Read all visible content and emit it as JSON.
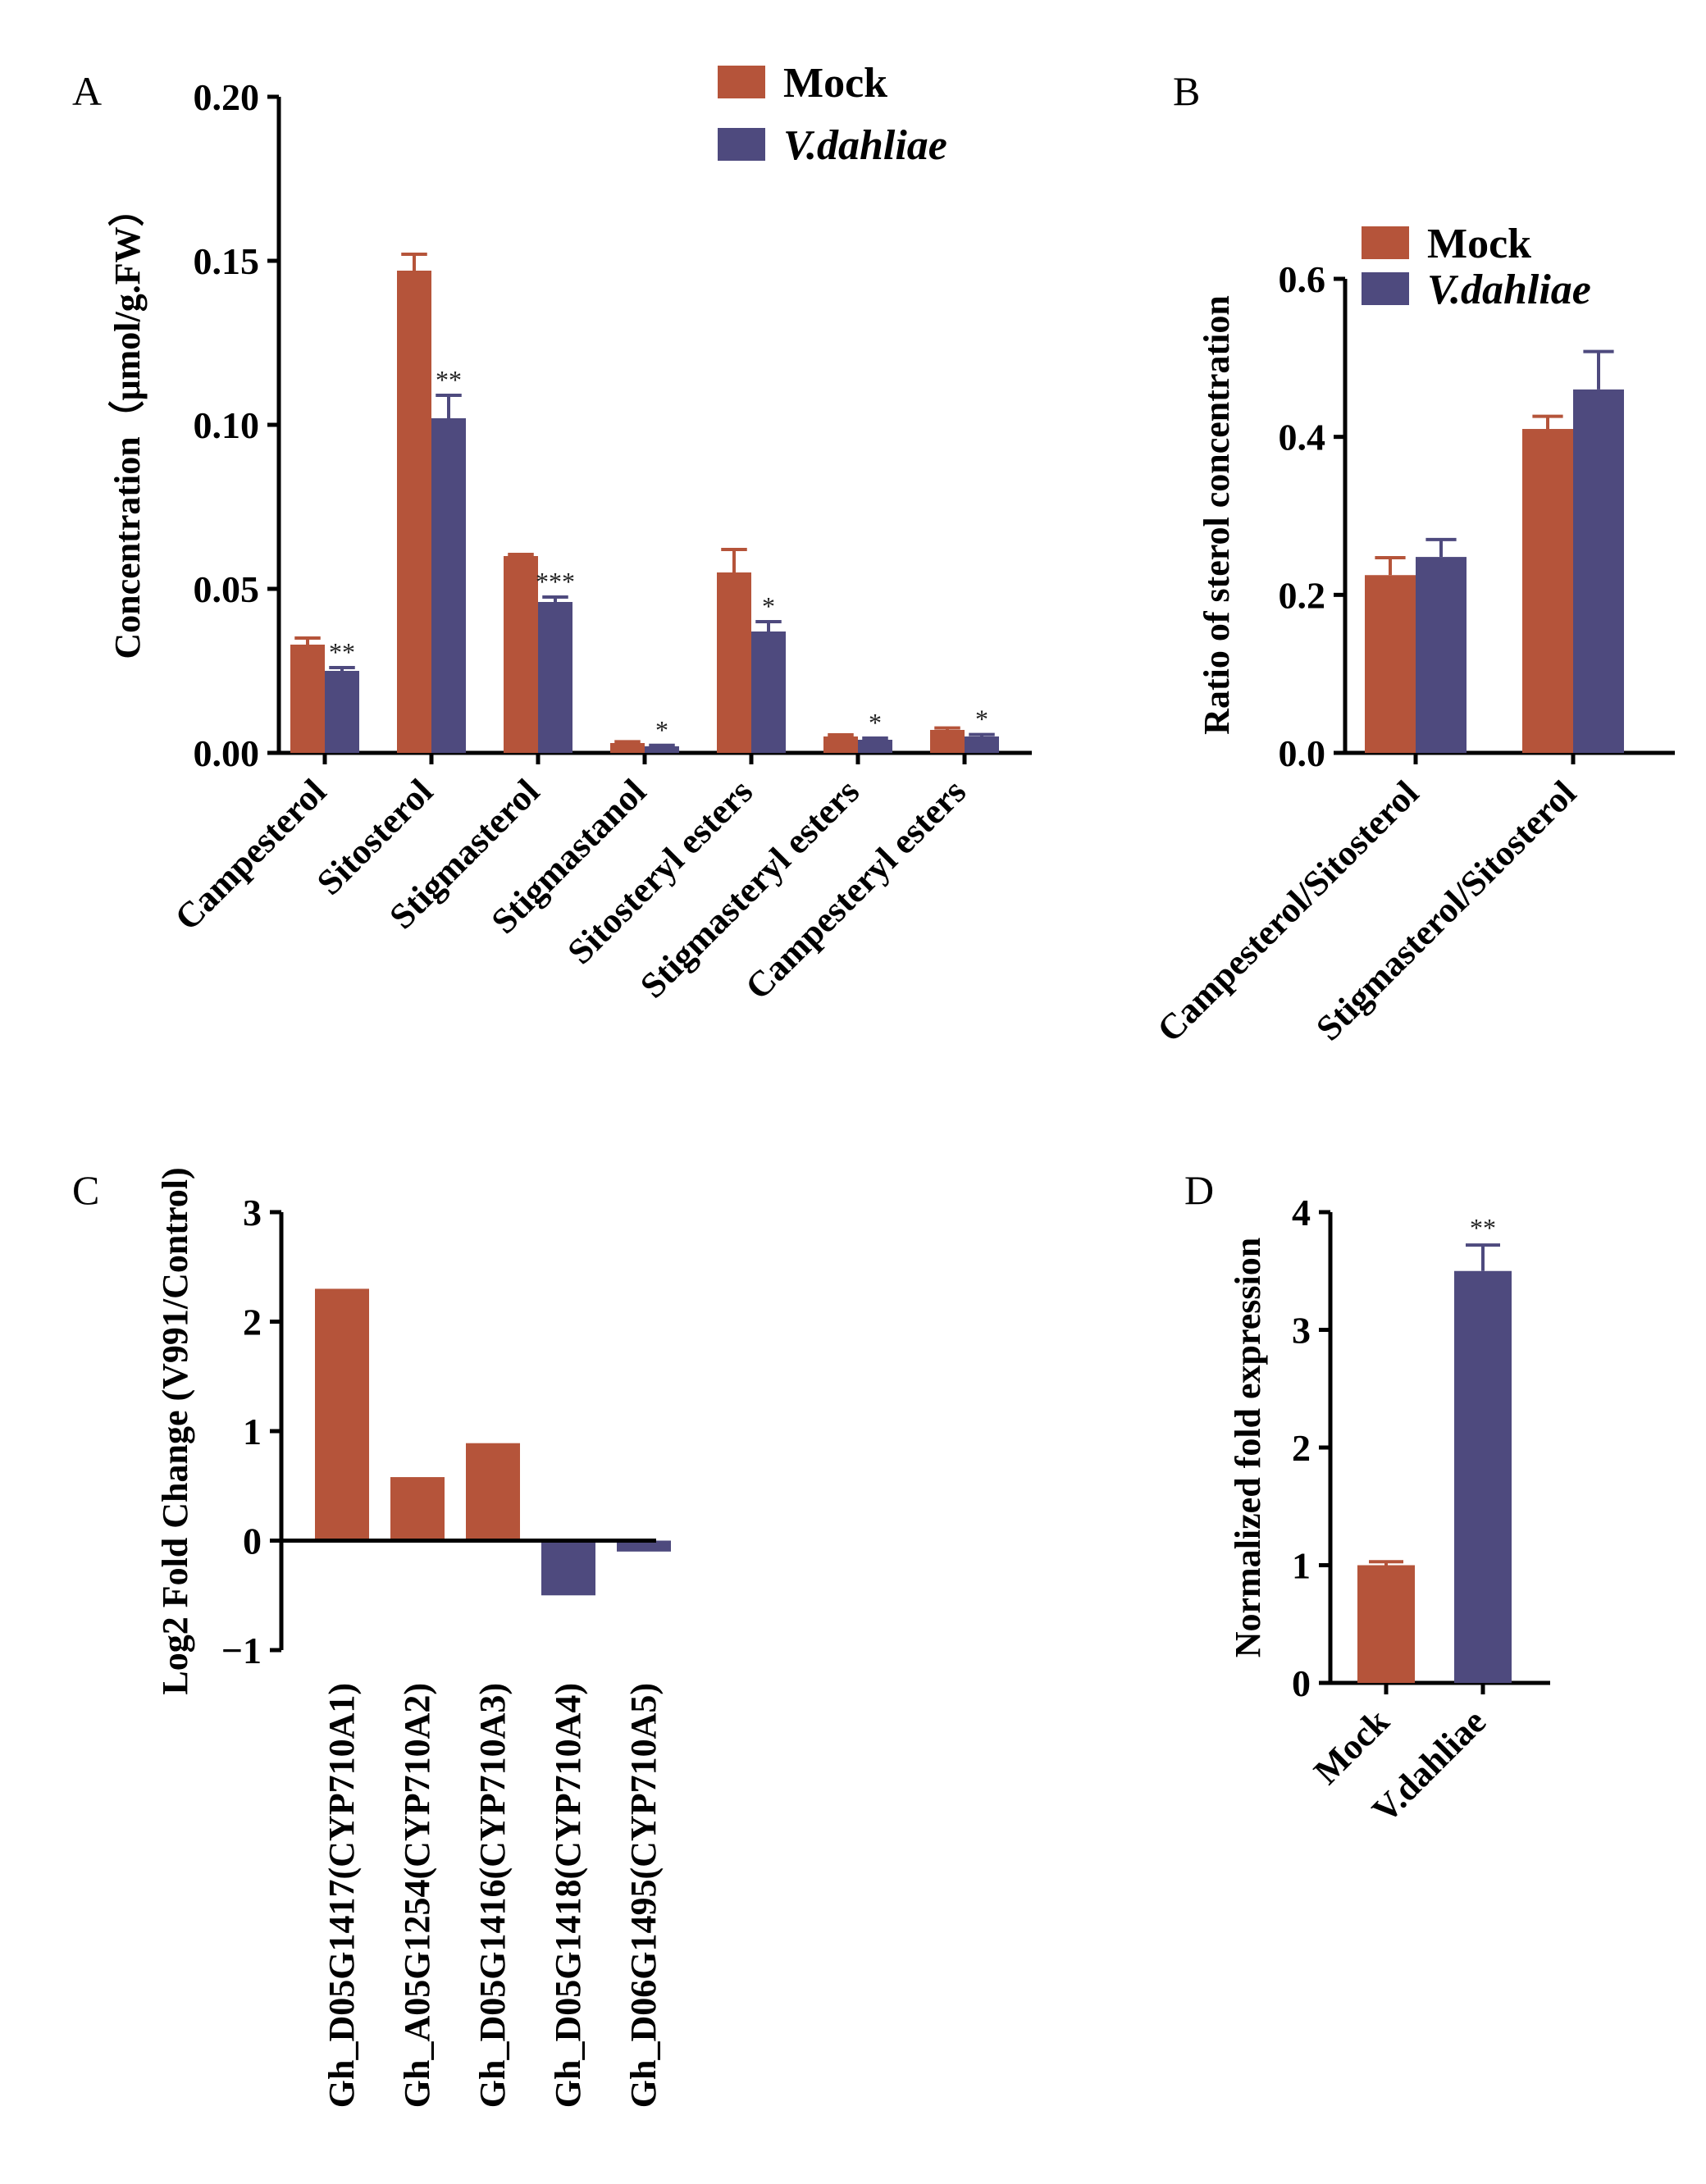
{
  "colors": {
    "mock": "#b5543a",
    "vd": "#4e4a7e",
    "axis": "#000000"
  },
  "chart_data": [
    {
      "id": "A",
      "type": "bar",
      "panel_label": "A",
      "ylabel": "Concentration（μmol/g.FW）",
      "ylim": [
        0,
        0.2
      ],
      "yticks": [
        0.0,
        0.05,
        0.1,
        0.15,
        0.2
      ],
      "ytick_labels": [
        "0.00",
        "0.05",
        "0.10",
        "0.15",
        "0.20"
      ],
      "categories": [
        "Campesterol",
        "Sitosterol",
        "Stigmasterol",
        "Stigmastanol",
        "Sitosteryl esters",
        "Stigmasteryl esters",
        "Campesteryl esters"
      ],
      "series": [
        {
          "name": "Mock",
          "key": "mock",
          "values": [
            0.033,
            0.147,
            0.06,
            0.003,
            0.055,
            0.005,
            0.007
          ],
          "errors": [
            0.002,
            0.005,
            0.0005,
            0.0004,
            0.007,
            0.0005,
            0.0006
          ]
        },
        {
          "name": "V.dahliae",
          "key": "vd",
          "values": [
            0.025,
            0.102,
            0.046,
            0.002,
            0.037,
            0.004,
            0.005
          ],
          "errors": [
            0.001,
            0.007,
            0.0015,
            0.0003,
            0.003,
            0.0005,
            0.0006
          ]
        }
      ],
      "significance": [
        "**",
        "**",
        "***",
        "*",
        "*",
        "*",
        "*"
      ],
      "legend": [
        "Mock",
        "V.dahliae"
      ]
    },
    {
      "id": "B",
      "type": "bar",
      "panel_label": "B",
      "ylabel": "Ratio of  sterol concentration",
      "ylim": [
        0,
        0.6
      ],
      "yticks": [
        0.0,
        0.2,
        0.4,
        0.6
      ],
      "ytick_labels": [
        "0.0",
        "0.2",
        "0.4",
        "0.6"
      ],
      "categories": [
        "Campesterol/Sitosterol",
        "Stigmasterol/Sitosterol"
      ],
      "series": [
        {
          "name": "Mock",
          "key": "mock",
          "values": [
            0.225,
            0.41
          ],
          "errors": [
            0.022,
            0.016
          ]
        },
        {
          "name": "V.dahliae",
          "key": "vd",
          "values": [
            0.248,
            0.46
          ],
          "errors": [
            0.022,
            0.048
          ]
        }
      ],
      "legend": [
        "Mock",
        "V.dahliae"
      ]
    },
    {
      "id": "C",
      "type": "bar",
      "panel_label": "C",
      "ylabel": "Log2 Fold Change (V991/Control)",
      "ylim": [
        -1,
        3
      ],
      "yticks": [
        -1,
        0,
        1,
        2,
        3
      ],
      "ytick_labels": [
        "−1",
        "0",
        "1",
        "2",
        "3"
      ],
      "categories": [
        "Gh_D05G1417(CYP710A1)",
        "Gh_A05G1254(CYP710A2)",
        "Gh_D05G1416(CYP710A3)",
        "Gh_D05G1418(CYP710A4)",
        "Gh_D06G1495(CYP710A5)"
      ],
      "values": [
        2.3,
        0.58,
        0.89,
        -0.5,
        -0.1
      ]
    },
    {
      "id": "D",
      "type": "bar",
      "panel_label": "D",
      "ylabel": "Normalized fold expression",
      "ylim": [
        0,
        4
      ],
      "yticks": [
        0,
        1,
        2,
        3,
        4
      ],
      "ytick_labels": [
        "0",
        "1",
        "2",
        "3",
        "4"
      ],
      "categories": [
        "Mock",
        "V.dahliae"
      ],
      "values": [
        1.0,
        3.5
      ],
      "errors": [
        0.03,
        0.22
      ],
      "significance": [
        "",
        "**"
      ]
    }
  ]
}
